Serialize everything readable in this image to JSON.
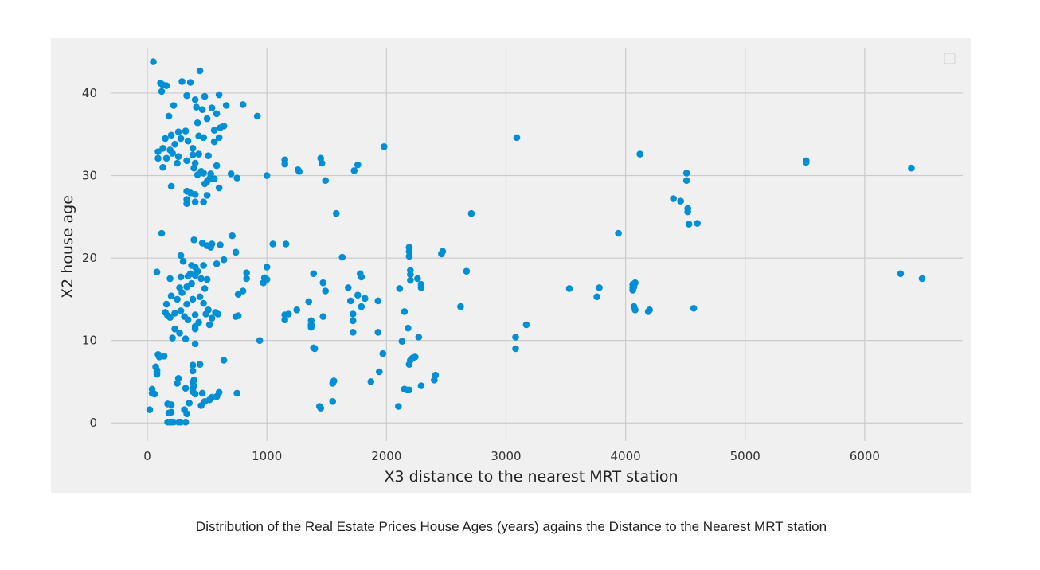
{
  "caption": "Distribution of the Real Estate Prices House Ages (years) agains the Distance to the Nearest MRT station",
  "colors": {
    "background": "#f0f0f0",
    "grid": "#cbcbcb",
    "point": "#008fd5"
  },
  "chart_data": {
    "type": "scatter",
    "title": "",
    "xlabel": "X3 distance to the nearest MRT station",
    "ylabel": "X2 house age",
    "xlim": [
      -300,
      6820
    ],
    "ylim": [
      -2.2,
      45.5
    ],
    "xticks": [
      0,
      1000,
      2000,
      3000,
      4000,
      5000,
      6000
    ],
    "yticks": [
      0,
      10,
      20,
      30,
      40
    ],
    "grid": true,
    "legend": "top-right (empty)",
    "series": [
      {
        "points": [
          [
            50,
            43.8
          ],
          [
            110,
            41.2
          ],
          [
            130,
            41
          ],
          [
            160,
            40.9
          ],
          [
            120,
            40.2
          ],
          [
            290,
            41.4
          ],
          [
            360,
            41.3
          ],
          [
            440,
            42.7
          ],
          [
            220,
            38.5
          ],
          [
            330,
            39.7
          ],
          [
            400,
            39.2
          ],
          [
            480,
            39.6
          ],
          [
            600,
            39.8
          ],
          [
            800,
            38.6
          ],
          [
            920,
            37.2
          ],
          [
            180,
            37.2
          ],
          [
            260,
            35.3
          ],
          [
            320,
            35.4
          ],
          [
            420,
            36.4
          ],
          [
            500,
            36.9
          ],
          [
            560,
            35.5
          ],
          [
            610,
            35.8
          ],
          [
            640,
            36
          ],
          [
            660,
            38.5
          ],
          [
            540,
            38.2
          ],
          [
            580,
            37.5
          ],
          [
            460,
            38
          ],
          [
            410,
            38.3
          ],
          [
            150,
            34.5
          ],
          [
            200,
            34.9
          ],
          [
            230,
            33.8
          ],
          [
            280,
            34.5
          ],
          [
            340,
            34.2
          ],
          [
            380,
            33.3
          ],
          [
            430,
            34.8
          ],
          [
            470,
            34.6
          ],
          [
            560,
            34.1
          ],
          [
            600,
            34.6
          ],
          [
            130,
            33.3
          ],
          [
            90,
            32.9
          ],
          [
            160,
            32.1
          ],
          [
            190,
            33.1
          ],
          [
            210,
            32.7
          ],
          [
            260,
            32.3
          ],
          [
            380,
            32.5
          ],
          [
            430,
            32.6
          ],
          [
            510,
            32.4
          ],
          [
            90,
            32.1
          ],
          [
            130,
            31
          ],
          [
            250,
            31.5
          ],
          [
            330,
            31.8
          ],
          [
            400,
            31.5
          ],
          [
            450,
            30.5
          ],
          [
            530,
            30.2
          ],
          [
            580,
            31.2
          ],
          [
            700,
            30.2
          ],
          [
            750,
            29.7
          ],
          [
            390,
            30.9
          ],
          [
            420,
            30.1
          ],
          [
            470,
            30.3
          ],
          [
            500,
            29.3
          ],
          [
            520,
            29.6
          ],
          [
            560,
            29.6
          ],
          [
            480,
            29
          ],
          [
            200,
            28.7
          ],
          [
            330,
            28.1
          ],
          [
            360,
            27.9
          ],
          [
            330,
            27.1
          ],
          [
            330,
            26.6
          ],
          [
            400,
            27.7
          ],
          [
            400,
            26.8
          ],
          [
            470,
            26.8
          ],
          [
            500,
            27.6
          ],
          [
            600,
            28.5
          ],
          [
            1000,
            30
          ],
          [
            1150,
            31.9
          ],
          [
            1150,
            31.4
          ],
          [
            1260,
            30.7
          ],
          [
            1270,
            30.5
          ],
          [
            1450,
            32.1
          ],
          [
            1460,
            31.5
          ],
          [
            1490,
            29.4
          ],
          [
            1730,
            30.6
          ],
          [
            1760,
            31.3
          ],
          [
            1980,
            33.5
          ],
          [
            1580,
            25.4
          ],
          [
            120,
            23
          ],
          [
            390,
            22.2
          ],
          [
            460,
            21.8
          ],
          [
            500,
            21.5
          ],
          [
            530,
            21.3
          ],
          [
            540,
            21.7
          ],
          [
            610,
            21.6
          ],
          [
            710,
            22.7
          ],
          [
            740,
            20.7
          ],
          [
            1050,
            21.7
          ],
          [
            1160,
            21.7
          ],
          [
            1630,
            20.1
          ],
          [
            280,
            20.3
          ],
          [
            300,
            19.6
          ],
          [
            370,
            19.1
          ],
          [
            400,
            18.9
          ],
          [
            470,
            19.1
          ],
          [
            580,
            19.3
          ],
          [
            640,
            19.8
          ],
          [
            80,
            18.3
          ],
          [
            190,
            17.5
          ],
          [
            280,
            17.7
          ],
          [
            340,
            17.8
          ],
          [
            360,
            18.1
          ],
          [
            400,
            17.9
          ],
          [
            420,
            18.4
          ],
          [
            450,
            17.5
          ],
          [
            500,
            17.4
          ],
          [
            370,
            16.9
          ],
          [
            480,
            16.3
          ],
          [
            830,
            18.2
          ],
          [
            830,
            17.5
          ],
          [
            980,
            17.6
          ],
          [
            970,
            17
          ],
          [
            1000,
            17.4
          ],
          [
            1000,
            18.9
          ],
          [
            1390,
            18.1
          ],
          [
            1470,
            17
          ],
          [
            1490,
            16
          ],
          [
            1780,
            18.1
          ],
          [
            1790,
            17.7
          ],
          [
            1680,
            16.4
          ],
          [
            270,
            16.4
          ],
          [
            290,
            15.8
          ],
          [
            330,
            16.5
          ],
          [
            440,
            15.3
          ],
          [
            160,
            14.4
          ],
          [
            200,
            15.4
          ],
          [
            250,
            15
          ],
          [
            330,
            14.4
          ],
          [
            380,
            15
          ],
          [
            470,
            14.5
          ],
          [
            570,
            13.4
          ],
          [
            760,
            15.6
          ],
          [
            800,
            16
          ],
          [
            150,
            13.4
          ],
          [
            170,
            13
          ],
          [
            190,
            12.8
          ],
          [
            230,
            13.3
          ],
          [
            280,
            13.6
          ],
          [
            310,
            12.9
          ],
          [
            340,
            12.5
          ],
          [
            400,
            13.1
          ],
          [
            430,
            12.2
          ],
          [
            490,
            13.2
          ],
          [
            510,
            13.7
          ],
          [
            540,
            12.7
          ],
          [
            590,
            13.2
          ],
          [
            740,
            12.9
          ],
          [
            760,
            13
          ],
          [
            230,
            11.4
          ],
          [
            400,
            11.7
          ],
          [
            400,
            11.4
          ],
          [
            520,
            11.9
          ],
          [
            1150,
            13.1
          ],
          [
            1150,
            12.5
          ],
          [
            1180,
            13.2
          ],
          [
            1250,
            13.7
          ],
          [
            1350,
            14.7
          ],
          [
            1370,
            12.4
          ],
          [
            1370,
            11.9
          ],
          [
            1370,
            11.6
          ],
          [
            1470,
            12.9
          ],
          [
            1700,
            14.8
          ],
          [
            1720,
            13.2
          ],
          [
            1720,
            12.4
          ],
          [
            1720,
            11
          ],
          [
            1760,
            15.5
          ],
          [
            1790,
            14.1
          ],
          [
            1820,
            15.1
          ],
          [
            1930,
            14.8
          ],
          [
            210,
            10.3
          ],
          [
            270,
            10.9
          ],
          [
            320,
            10.2
          ],
          [
            400,
            9.6
          ],
          [
            940,
            10
          ],
          [
            1390,
            9.1
          ],
          [
            1400,
            9
          ],
          [
            1930,
            11
          ],
          [
            1970,
            8.4
          ],
          [
            90,
            8.3
          ],
          [
            100,
            8
          ],
          [
            140,
            8.1
          ],
          [
            380,
            7
          ],
          [
            440,
            7.1
          ],
          [
            640,
            7.6
          ],
          [
            70,
            6.8
          ],
          [
            80,
            6.4
          ],
          [
            80,
            6.2
          ],
          [
            80,
            5.9
          ],
          [
            380,
            6.3
          ],
          [
            390,
            5.2
          ],
          [
            380,
            4.9
          ],
          [
            390,
            4.5
          ],
          [
            380,
            4.1
          ],
          [
            380,
            3.8
          ],
          [
            400,
            3.5
          ],
          [
            460,
            3.6
          ],
          [
            260,
            5.4
          ],
          [
            250,
            4.8
          ],
          [
            320,
            4.2
          ],
          [
            540,
            3.1
          ],
          [
            580,
            3.2
          ],
          [
            600,
            3.7
          ],
          [
            750,
            3.6
          ],
          [
            480,
            2.6
          ],
          [
            520,
            2.8
          ],
          [
            450,
            2.1
          ],
          [
            40,
            4.1
          ],
          [
            40,
            3.6
          ],
          [
            60,
            3.5
          ],
          [
            20,
            1.6
          ],
          [
            170,
            2.3
          ],
          [
            200,
            2.2
          ],
          [
            350,
            2.4
          ],
          [
            310,
            1.6
          ],
          [
            330,
            1.1
          ],
          [
            180,
            1.2
          ],
          [
            200,
            1.3
          ],
          [
            170,
            0.1
          ],
          [
            190,
            0.1
          ],
          [
            200,
            0.1
          ],
          [
            220,
            0.1
          ],
          [
            260,
            0.1
          ],
          [
            280,
            0.1
          ],
          [
            320,
            0.1
          ],
          [
            1440,
            2
          ],
          [
            1450,
            1.8
          ],
          [
            1550,
            2.6
          ],
          [
            1550,
            4.8
          ],
          [
            1560,
            5.1
          ],
          [
            1870,
            5
          ],
          [
            1940,
            6.2
          ],
          [
            2100,
            2
          ],
          [
            2130,
            9.9
          ],
          [
            2110,
            16.3
          ],
          [
            2150,
            13.5
          ],
          [
            2180,
            11.5
          ],
          [
            2150,
            4.1
          ],
          [
            2170,
            4
          ],
          [
            2190,
            4
          ],
          [
            2190,
            7.1
          ],
          [
            2200,
            7.6
          ],
          [
            2220,
            7.9
          ],
          [
            2240,
            8
          ],
          [
            2270,
            10.4
          ],
          [
            2290,
            4.5
          ],
          [
            2190,
            21.3
          ],
          [
            2190,
            20.8
          ],
          [
            2190,
            20.2
          ],
          [
            2200,
            18.5
          ],
          [
            2200,
            18
          ],
          [
            2200,
            17.3
          ],
          [
            2260,
            17.5
          ],
          [
            2290,
            16.8
          ],
          [
            2290,
            16.4
          ],
          [
            2400,
            5.2
          ],
          [
            2410,
            5.8
          ],
          [
            2460,
            20.5
          ],
          [
            2470,
            20.8
          ],
          [
            2620,
            14.1
          ],
          [
            2670,
            18.4
          ],
          [
            2710,
            25.4
          ],
          [
            3080,
            10.4
          ],
          [
            3080,
            9
          ],
          [
            3090,
            34.6
          ],
          [
            3170,
            11.9
          ],
          [
            3530,
            16.3
          ],
          [
            3760,
            15.3
          ],
          [
            3780,
            16.4
          ],
          [
            3940,
            23
          ],
          [
            4060,
            16.8
          ],
          [
            4070,
            16.5
          ],
          [
            4080,
            17
          ],
          [
            4060,
            16.4
          ],
          [
            4060,
            16.1
          ],
          [
            4070,
            14.1
          ],
          [
            4080,
            13.7
          ],
          [
            4190,
            13.5
          ],
          [
            4200,
            13.7
          ],
          [
            4120,
            32.6
          ],
          [
            4400,
            27.2
          ],
          [
            4460,
            26.9
          ],
          [
            4510,
            30.3
          ],
          [
            4510,
            29.4
          ],
          [
            4520,
            26
          ],
          [
            4520,
            25.6
          ],
          [
            4530,
            24.1
          ],
          [
            4600,
            24.2
          ],
          [
            4570,
            13.9
          ],
          [
            5510,
            31.8
          ],
          [
            5510,
            31.6
          ],
          [
            6390,
            30.9
          ],
          [
            6300,
            18.1
          ],
          [
            6480,
            17.5
          ]
        ]
      }
    ]
  }
}
